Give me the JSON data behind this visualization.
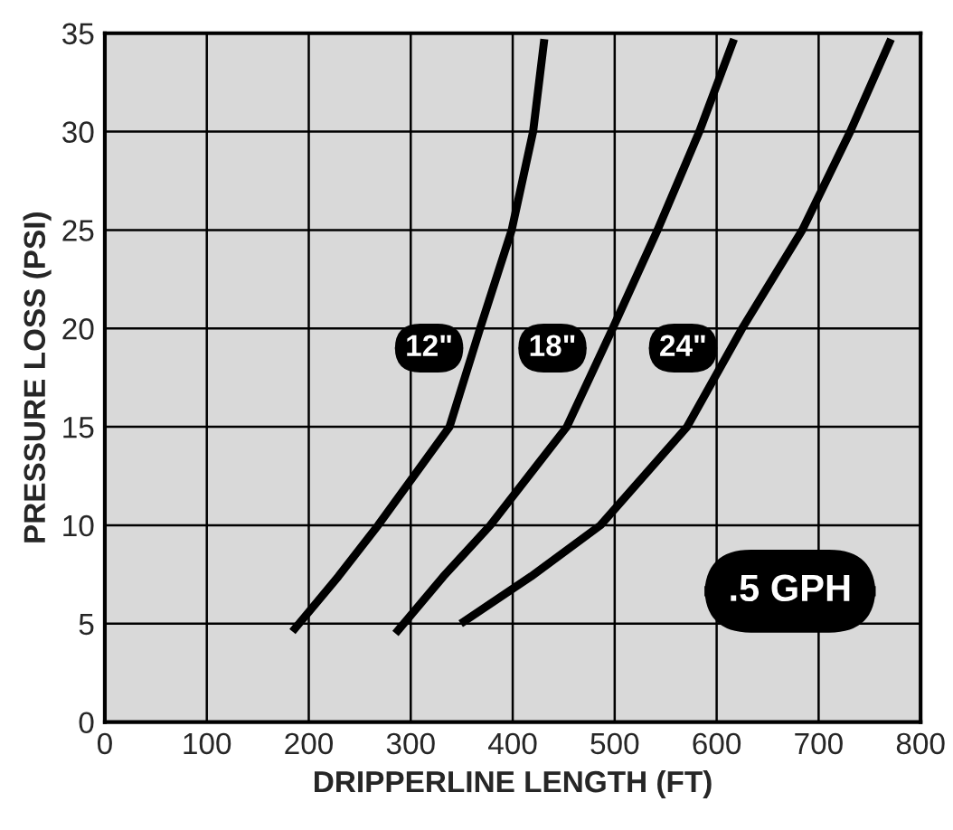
{
  "chart_data": {
    "type": "line",
    "xlabel": "DRIPPERLINE LENGTH (FT)",
    "ylabel": "PRESSURE LOSS (PSI)",
    "xlim": [
      0,
      800
    ],
    "xticks": [
      0,
      100,
      200,
      300,
      400,
      500,
      600,
      700,
      800
    ],
    "ylim": [
      0,
      35
    ],
    "yticks": [
      0,
      5,
      10,
      15,
      20,
      25,
      30,
      35
    ],
    "grid": true,
    "marker": "none",
    "line_style": "solid",
    "series": [
      {
        "color": "#000000",
        "x": [
          184,
          229,
          268,
          338,
          368,
          399,
          420,
          431
        ],
        "values": [
          4.6,
          7.4,
          10,
          15,
          20,
          25,
          30,
          34.7
        ]
      },
      {
        "color": "#000000",
        "x": [
          285,
          332,
          378,
          453,
          498,
          542,
          583,
          617
        ],
        "values": [
          4.5,
          7.4,
          10,
          15,
          20,
          25,
          30,
          34.7
        ]
      },
      {
        "color": "#000000",
        "x": [
          349,
          418,
          486,
          571,
          625,
          684,
          731,
          771
        ],
        "values": [
          5,
          7.4,
          10,
          15,
          20,
          25,
          30,
          34.7
        ]
      }
    ],
    "annotations": [
      {
        "text": "12\"",
        "x": 318,
        "y": 19
      },
      {
        "text": "18\"",
        "x": 439,
        "y": 19
      },
      {
        "text": "24\"",
        "x": 567,
        "y": 19
      },
      ".5 GPH"
    ]
  }
}
